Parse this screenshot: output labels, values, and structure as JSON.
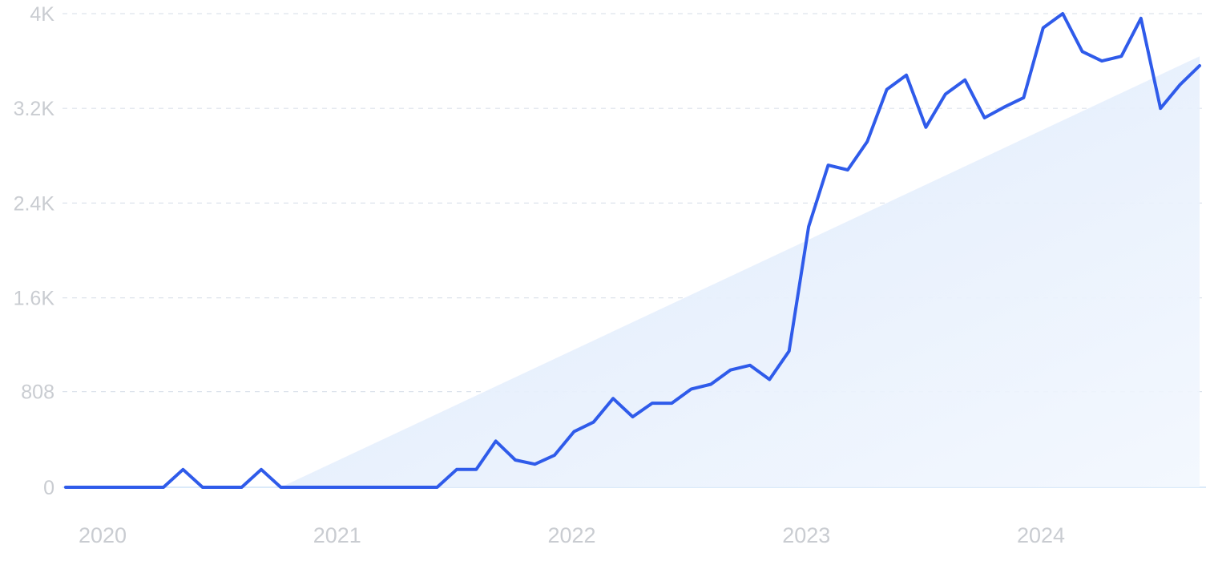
{
  "chart_data": {
    "type": "line",
    "title": "",
    "xlabel": "",
    "ylabel": "",
    "x_range": [
      "2020-01",
      "2024-10"
    ],
    "ylim": [
      0,
      4000
    ],
    "grid": true,
    "legend": "none",
    "y_ticks": [
      {
        "value": 0,
        "label": "0"
      },
      {
        "value": 808,
        "label": "808"
      },
      {
        "value": 1600,
        "label": "1.6K"
      },
      {
        "value": 2400,
        "label": "2.4K"
      },
      {
        "value": 3200,
        "label": "3.2K"
      },
      {
        "value": 4000,
        "label": "4K"
      }
    ],
    "x_ticks": [
      {
        "value": "2020-01",
        "label": "2020"
      },
      {
        "value": "2021-01",
        "label": "2021"
      },
      {
        "value": "2022-01",
        "label": "2022"
      },
      {
        "value": "2023-01",
        "label": "2023"
      },
      {
        "value": "2024-01",
        "label": "2024"
      }
    ],
    "series": [
      {
        "color": "#2f5bea",
        "points": [
          [
            "2020-01",
            0
          ],
          [
            "2020-02",
            0
          ],
          [
            "2020-03",
            0
          ],
          [
            "2020-04",
            0
          ],
          [
            "2020-05",
            0
          ],
          [
            "2020-06",
            0
          ],
          [
            "2020-07",
            150
          ],
          [
            "2020-08",
            0
          ],
          [
            "2020-09",
            0
          ],
          [
            "2020-10",
            0
          ],
          [
            "2020-11",
            150
          ],
          [
            "2020-12",
            0
          ],
          [
            "2021-01",
            0
          ],
          [
            "2021-02",
            0
          ],
          [
            "2021-03",
            0
          ],
          [
            "2021-04",
            0
          ],
          [
            "2021-05",
            0
          ],
          [
            "2021-06",
            0
          ],
          [
            "2021-07",
            0
          ],
          [
            "2021-08",
            0
          ],
          [
            "2021-09",
            150
          ],
          [
            "2021-10",
            150
          ],
          [
            "2021-11",
            390
          ],
          [
            "2021-12",
            230
          ],
          [
            "2022-01",
            195
          ],
          [
            "2022-02",
            270
          ],
          [
            "2022-03",
            470
          ],
          [
            "2022-04",
            550
          ],
          [
            "2022-05",
            750
          ],
          [
            "2022-06",
            595
          ],
          [
            "2022-07",
            710
          ],
          [
            "2022-08",
            710
          ],
          [
            "2022-09",
            830
          ],
          [
            "2022-10",
            870
          ],
          [
            "2022-11",
            990
          ],
          [
            "2022-12",
            1030
          ],
          [
            "2023-01",
            910
          ],
          [
            "2023-02",
            1150
          ],
          [
            "2023-03",
            2200
          ],
          [
            "2023-04",
            2720
          ],
          [
            "2023-05",
            2680
          ],
          [
            "2023-06",
            2920
          ],
          [
            "2023-07",
            3360
          ],
          [
            "2023-08",
            3480
          ],
          [
            "2023-09",
            3040
          ],
          [
            "2023-10",
            3320
          ],
          [
            "2023-11",
            3440
          ],
          [
            "2023-12",
            3120
          ],
          [
            "2024-01",
            3210
          ],
          [
            "2024-02",
            3290
          ],
          [
            "2024-03",
            3880
          ],
          [
            "2024-04",
            4000
          ],
          [
            "2024-05",
            3680
          ],
          [
            "2024-06",
            3600
          ],
          [
            "2024-07",
            3640
          ],
          [
            "2024-08",
            3960
          ],
          [
            "2024-09",
            3200
          ],
          [
            "2024-10",
            3400
          ],
          [
            "2024-11",
            3560
          ]
        ]
      }
    ],
    "trend": {
      "start": [
        "2020-12",
        0
      ],
      "end": [
        "2024-11",
        3640
      ],
      "color": "#dbe8fb"
    }
  }
}
